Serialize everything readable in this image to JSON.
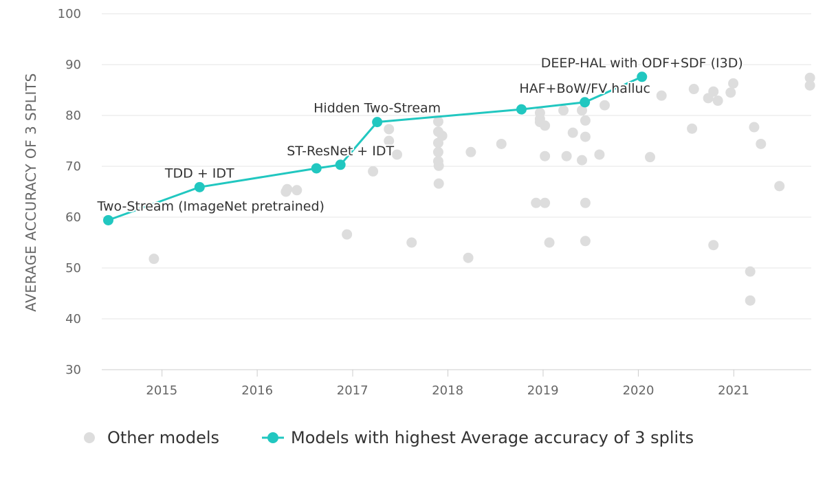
{
  "chart_data": {
    "type": "scatter",
    "ylabel": "AVERAGE ACCURACY OF 3 SPLITS",
    "ylim": [
      30,
      100
    ],
    "xlim": [
      "2014-05-15",
      "2021-10-25"
    ],
    "y_ticks": [
      30,
      40,
      50,
      60,
      70,
      80,
      90,
      100
    ],
    "x_ticks": [
      "2015",
      "2016",
      "2017",
      "2018",
      "2019",
      "2020",
      "2021"
    ],
    "grid": true,
    "legend_placement": "bottom",
    "series": [
      {
        "name": "Other models",
        "kind": "scatter",
        "color": "#dddddd",
        "points": [
          [
            "2014-12-01",
            51.8
          ],
          [
            "2016-04-20",
            65.0
          ],
          [
            "2016-04-25",
            65.5
          ],
          [
            "2016-06-01",
            65.3
          ],
          [
            "2016-12-10",
            56.6
          ],
          [
            "2017-03-20",
            69.0
          ],
          [
            "2017-05-20",
            77.3
          ],
          [
            "2017-05-20",
            75.0
          ],
          [
            "2017-06-20",
            72.3
          ],
          [
            "2017-08-15",
            55.0
          ],
          [
            "2017-11-25",
            78.8
          ],
          [
            "2017-11-25",
            76.8
          ],
          [
            "2017-11-25",
            74.6
          ],
          [
            "2017-11-25",
            72.8
          ],
          [
            "2017-11-25",
            71.0
          ],
          [
            "2017-11-27",
            70.1
          ],
          [
            "2017-11-27",
            66.6
          ],
          [
            "2017-12-10",
            76.0
          ],
          [
            "2018-03-20",
            52.0
          ],
          [
            "2018-03-30",
            72.8
          ],
          [
            "2018-07-25",
            74.4
          ],
          [
            "2018-12-05",
            62.8
          ],
          [
            "2018-12-20",
            80.5
          ],
          [
            "2018-12-20",
            79.3
          ],
          [
            "2018-12-20",
            78.7
          ],
          [
            "2019-01-08",
            78.0
          ],
          [
            "2019-01-08",
            72.0
          ],
          [
            "2019-01-08",
            62.8
          ],
          [
            "2019-01-25",
            55.0
          ],
          [
            "2019-03-20",
            81.0
          ],
          [
            "2019-04-01",
            72.0
          ],
          [
            "2019-04-25",
            76.6
          ],
          [
            "2019-05-30",
            71.2
          ],
          [
            "2019-05-30",
            81.0
          ],
          [
            "2019-06-12",
            79.0
          ],
          [
            "2019-06-12",
            75.8
          ],
          [
            "2019-06-12",
            62.8
          ],
          [
            "2019-06-12",
            55.3
          ],
          [
            "2019-08-05",
            72.3
          ],
          [
            "2019-08-25",
            82.0
          ],
          [
            "2020-02-15",
            71.8
          ],
          [
            "2020-03-30",
            83.9
          ],
          [
            "2020-07-25",
            77.4
          ],
          [
            "2020-08-01",
            85.2
          ],
          [
            "2020-09-25",
            83.4
          ],
          [
            "2020-10-15",
            84.7
          ],
          [
            "2020-10-15",
            54.5
          ],
          [
            "2020-11-01",
            82.9
          ],
          [
            "2020-12-20",
            84.5
          ],
          [
            "2020-12-30",
            86.3
          ],
          [
            "2021-03-05",
            49.3
          ],
          [
            "2021-03-05",
            43.6
          ],
          [
            "2021-03-20",
            77.7
          ],
          [
            "2021-04-15",
            74.4
          ],
          [
            "2021-06-25",
            66.1
          ],
          [
            "2021-10-20",
            87.4
          ],
          [
            "2021-10-20",
            85.9
          ]
        ]
      },
      {
        "name": "Models with highest Average accuracy of 3 splits",
        "kind": "line",
        "color": "#21c7c0",
        "points": [
          [
            "2014-06-09",
            59.4
          ],
          [
            "2015-05-25",
            65.9
          ],
          [
            "2016-08-15",
            69.6
          ],
          [
            "2016-11-15",
            70.3
          ],
          [
            "2017-04-05",
            78.7
          ],
          [
            "2018-10-10",
            81.2
          ],
          [
            "2019-06-10",
            82.6
          ],
          [
            "2020-01-15",
            87.6
          ]
        ]
      }
    ],
    "annotations": [
      {
        "text": "Two-Stream (ImageNet pretrained)",
        "point": 0
      },
      {
        "text": "TDD + IDT",
        "point": 1
      },
      {
        "text": "ST-ResNet + IDT",
        "point": 3
      },
      {
        "text": "Hidden Two-Stream",
        "point": 4
      },
      {
        "text": "HAF+BoW/FV halluc",
        "point": 6
      },
      {
        "text": "DEEP-HAL with ODF+SDF (I3D)",
        "point": 7
      }
    ]
  }
}
